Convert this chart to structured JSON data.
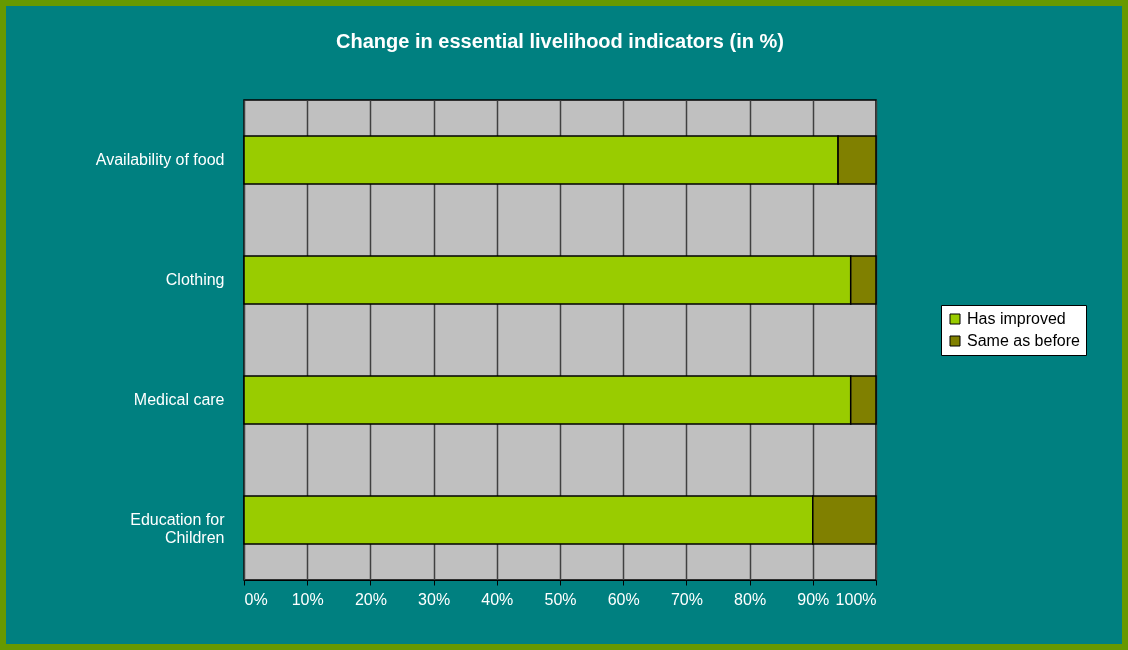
{
  "chart_data": {
    "type": "bar",
    "orientation": "horizontal",
    "stacked": true,
    "title": "Change in essential livelihood indicators (in %)",
    "categories": [
      "Availability of food",
      "Clothing",
      "Medical care",
      "Education for Children"
    ],
    "series": [
      {
        "name": "Has improved",
        "color": "#99cc00",
        "values": [
          94,
          96,
          96,
          90
        ]
      },
      {
        "name": "Same as before",
        "color": "#808000",
        "values": [
          6,
          4,
          4,
          10
        ]
      }
    ],
    "xlim": [
      0,
      100
    ],
    "xticks": [
      {
        "value": 0,
        "label": "0%"
      },
      {
        "value": 10,
        "label": "10%"
      },
      {
        "value": 20,
        "label": "20%"
      },
      {
        "value": 30,
        "label": "30%"
      },
      {
        "value": 40,
        "label": "40%"
      },
      {
        "value": 50,
        "label": "50%"
      },
      {
        "value": 60,
        "label": "60%"
      },
      {
        "value": 70,
        "label": "70%"
      },
      {
        "value": 80,
        "label": "80%"
      },
      {
        "value": 90,
        "label": "90%"
      },
      {
        "value": 100,
        "label": "100%"
      }
    ],
    "grid": "x",
    "legend": "right"
  }
}
